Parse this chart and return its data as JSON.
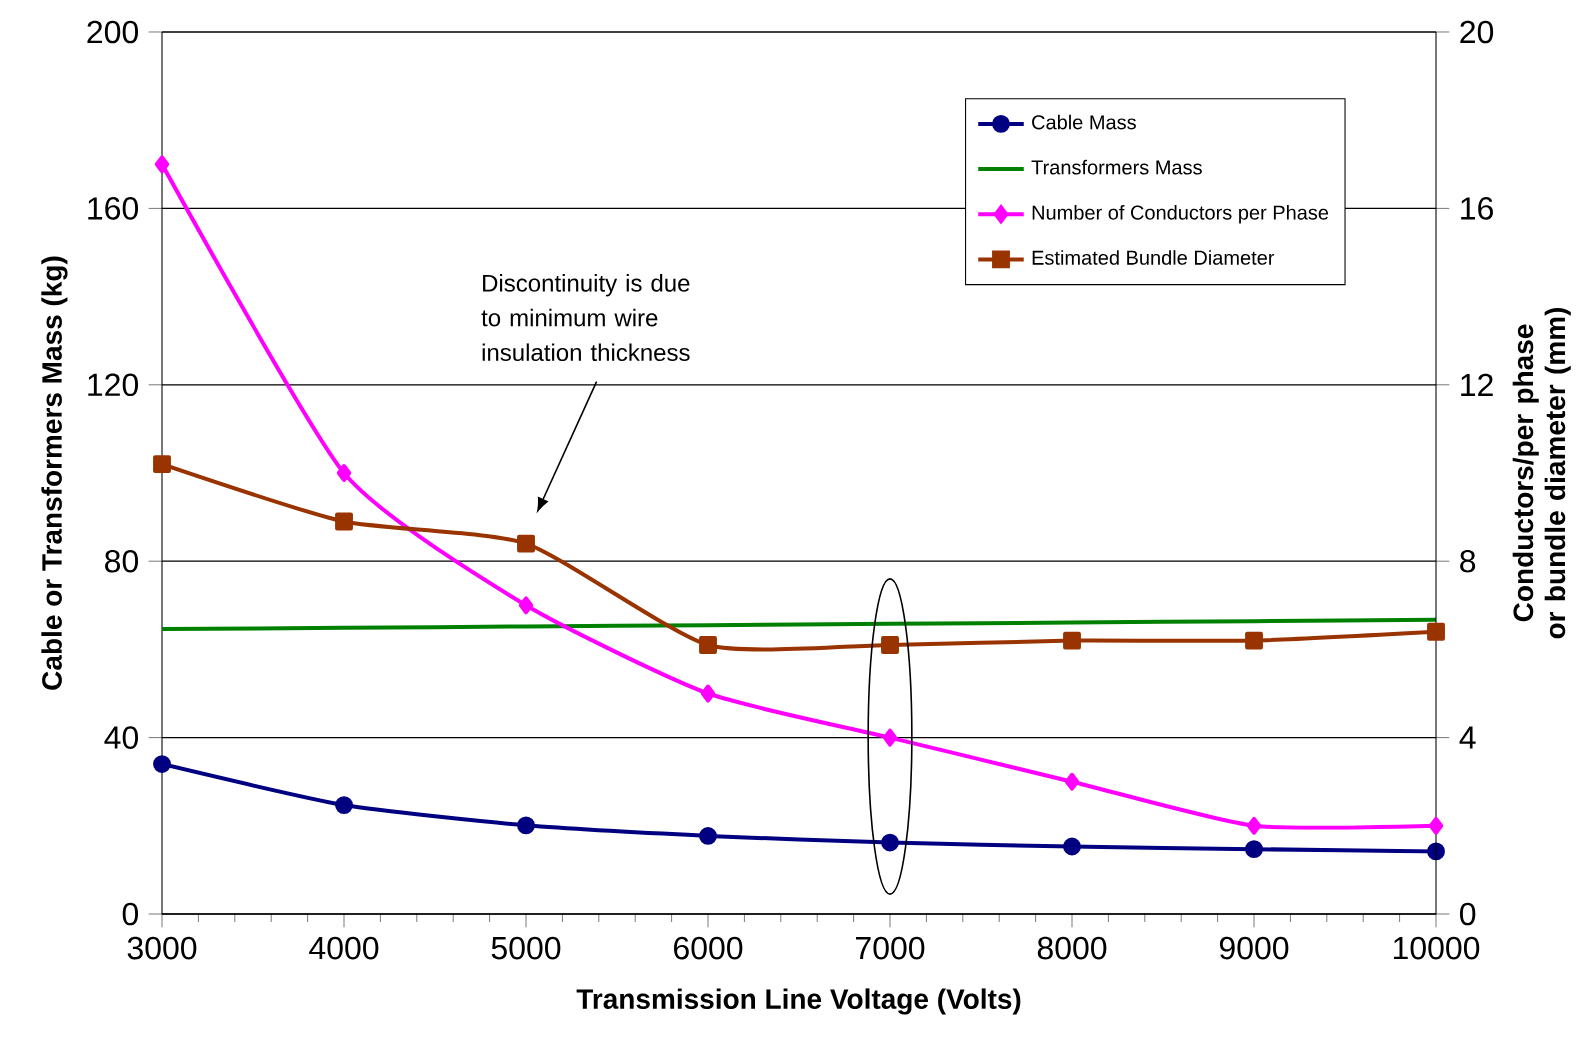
{
  "chart_data": {
    "type": "line",
    "xlabel": "Transmission Line Voltage (Volts)",
    "ylabel": "Cable or Transformers Mass (kg)",
    "y2label": "Conductors/per phase or bundle diameter (mm)",
    "x": [
      3000,
      4000,
      5000,
      6000,
      7000,
      8000,
      9000,
      10000
    ],
    "series": [
      {
        "name": "Cable Mass",
        "color": "#000080",
        "marker": "circle",
        "values": [
          34,
          24.7,
          20.1,
          17.7,
          16.2,
          15.3,
          14.7,
          14.2
        ]
      },
      {
        "name": "Transformers Mass",
        "color": "#008000",
        "marker": "none",
        "values": [
          64.6,
          64.9,
          65.2,
          65.5,
          65.8,
          66.1,
          66.4,
          66.7
        ]
      },
      {
        "name": "Number of Conductors per Phase",
        "color": "#ff00ff",
        "marker": "diamond",
        "axis": "y2",
        "values": [
          17,
          10,
          7,
          5,
          4,
          3,
          2,
          2
        ]
      },
      {
        "name": "Estimated Bundle Diameter",
        "color": "#993300",
        "marker": "square",
        "axis": "y2",
        "values": [
          10.2,
          8.9,
          8.4,
          6.1,
          6.1,
          6.2,
          6.2,
          6.4
        ]
      }
    ],
    "xlim": [
      3000,
      10000
    ],
    "xticks": [
      3000,
      4000,
      5000,
      6000,
      7000,
      8000,
      9000,
      10000
    ],
    "ylim": [
      0,
      200
    ],
    "yticks": [
      0,
      40,
      80,
      120,
      160,
      200
    ],
    "y2lim": [
      0,
      20
    ],
    "y2ticks": [
      0,
      4,
      8,
      12,
      16,
      20
    ],
    "grid": "y",
    "legend": "top right",
    "line_style": "solid",
    "annotations": [
      "Discontinuity is due to minimum wire insulation thickness"
    ]
  }
}
